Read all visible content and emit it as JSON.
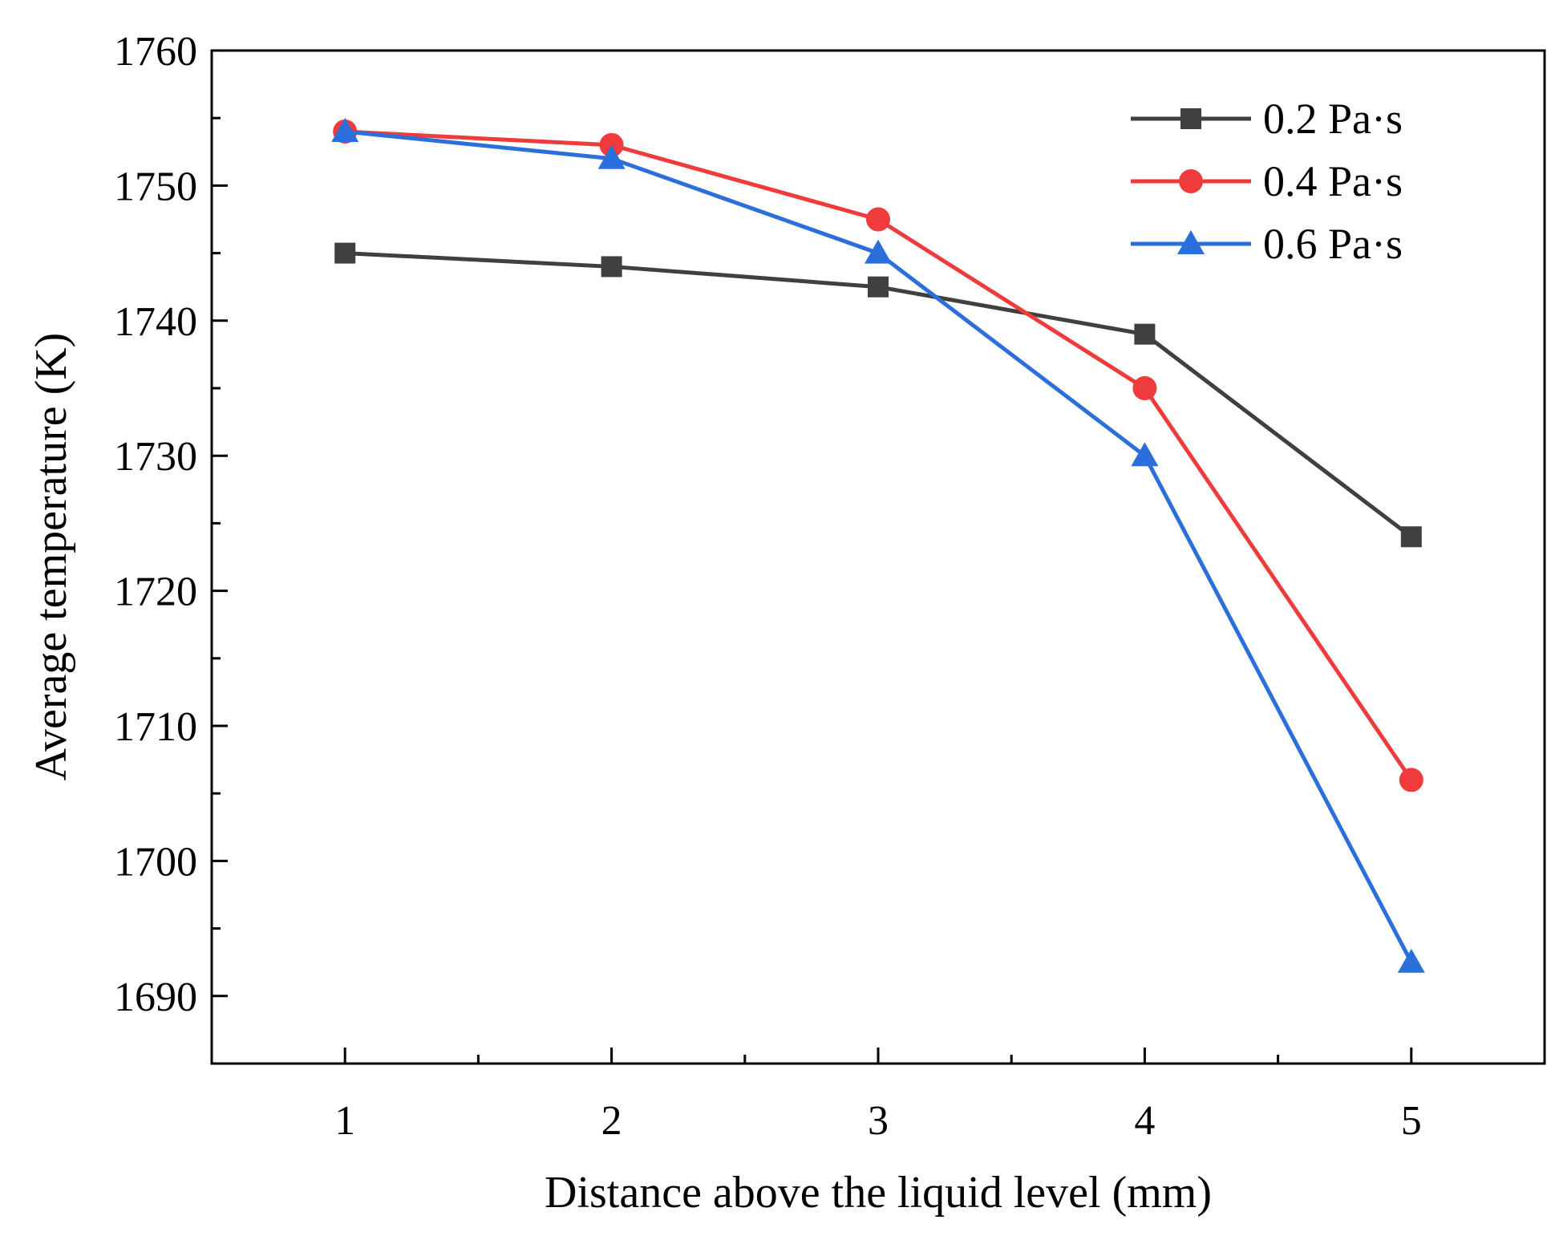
{
  "chart_data": {
    "type": "line",
    "xlabel": "Distance above the liquid level (mm)",
    "ylabel": "Average temperature (K)",
    "x": [
      1,
      2,
      3,
      4,
      5
    ],
    "xticks": [
      "1",
      "2",
      "3",
      "4",
      "5"
    ],
    "xlim": [
      0.5,
      5.5
    ],
    "ylim": [
      1685,
      1760
    ],
    "yticks": [
      "1690",
      "1700",
      "1710",
      "1720",
      "1730",
      "1740",
      "1750",
      "1760"
    ],
    "grid": false,
    "legend_position": "top-right",
    "series": [
      {
        "name": "0.2 Pa·s",
        "color": "#404040",
        "marker": "square",
        "values": [
          1745,
          1744,
          1742.5,
          1739,
          1724
        ]
      },
      {
        "name": "0.4 Pa·s",
        "color": "#ef3b3b",
        "marker": "circle",
        "values": [
          1754,
          1753,
          1747.5,
          1735,
          1706
        ]
      },
      {
        "name": "0.6 Pa·s",
        "color": "#2a6fdb",
        "marker": "triangle",
        "values": [
          1754,
          1752,
          1745,
          1730,
          1692.5
        ]
      }
    ]
  }
}
